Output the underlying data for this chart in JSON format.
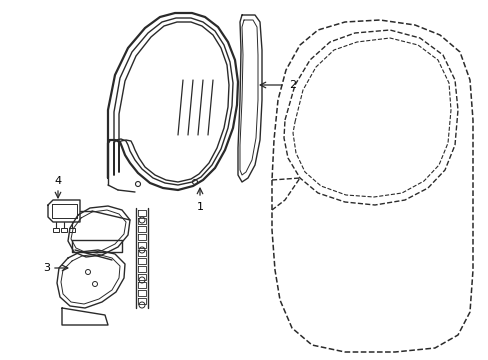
{
  "bg_color": "#ffffff",
  "line_color": "#2a2a2a",
  "dashed_color": "#2a2a2a",
  "label_color": "#000000",
  "figsize": [
    4.89,
    3.6
  ],
  "dpi": 100,
  "xlim": [
    0,
    489
  ],
  "ylim": [
    0,
    360
  ]
}
